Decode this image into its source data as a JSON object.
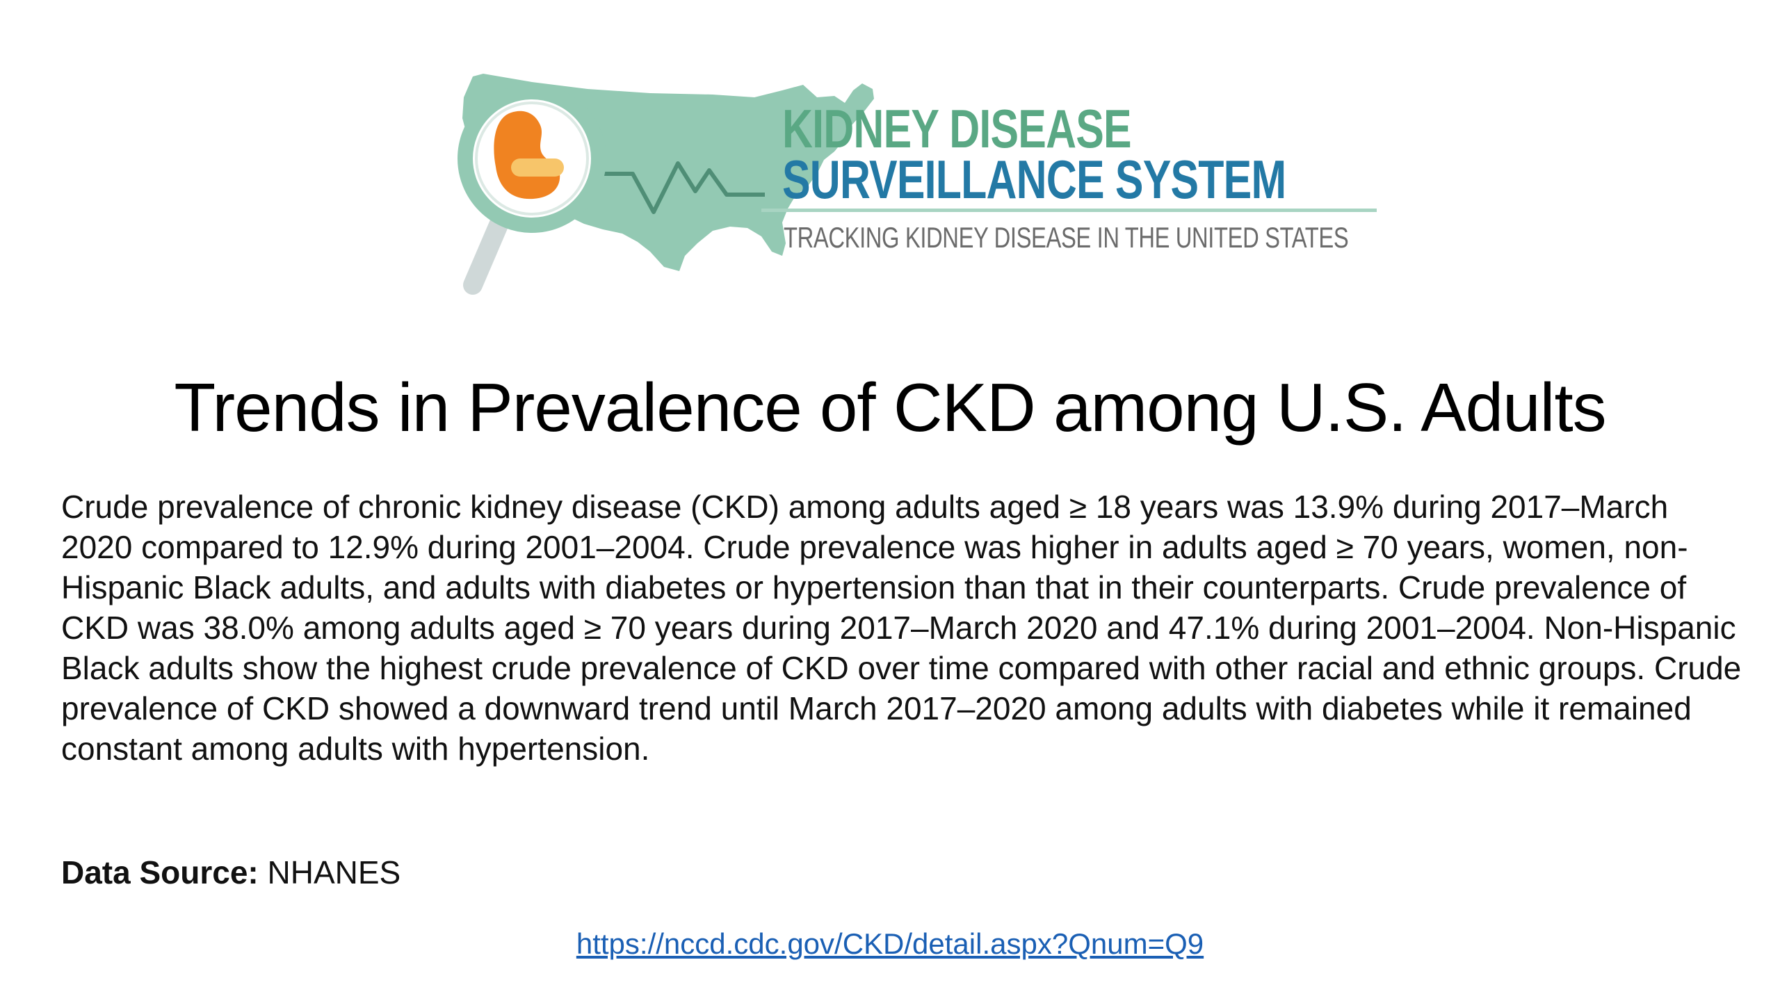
{
  "logo": {
    "line1": "KIDNEY DISEASE",
    "line2": "SURVEILLANCE SYSTEM",
    "tagline": "TRACKING KIDNEY DISEASE IN THE UNITED STATES",
    "colors": {
      "map": "#93c9b3",
      "kidney": "#f08321",
      "line1": "#5aa884",
      "line2": "#2379a5",
      "tagline": "#6b6b6b"
    }
  },
  "title": "Trends in Prevalence of CKD among U.S. Adults",
  "summary": "Crude prevalence of chronic kidney disease (CKD) among adults aged ≥ 18 years was 13.9% during 2017–March 2020 compared to 12.9% during 2001–2004. Crude prevalence was higher in adults aged ≥ 70 years, women, non-Hispanic Black adults, and adults with diabetes or hypertension than that in their counterparts. Crude prevalence of CKD was 38.0% among adults aged ≥ 70 years during 2017–March 2020 and 47.1% during 2001–2004. Non-Hispanic Black adults show the highest crude prevalence of CKD over time compared with other racial and ethnic groups. Crude prevalence of CKD showed a downward trend until March 2017–2020 among adults with diabetes while it remained constant among adults with hypertension.",
  "data_source": {
    "label": "Data Source:",
    "value": "NHANES"
  },
  "link": {
    "text": "https://nccd.cdc.gov/CKD/detail.aspx?Qnum=Q9",
    "href": "https://nccd.cdc.gov/CKD/detail.aspx?Qnum=Q9"
  }
}
